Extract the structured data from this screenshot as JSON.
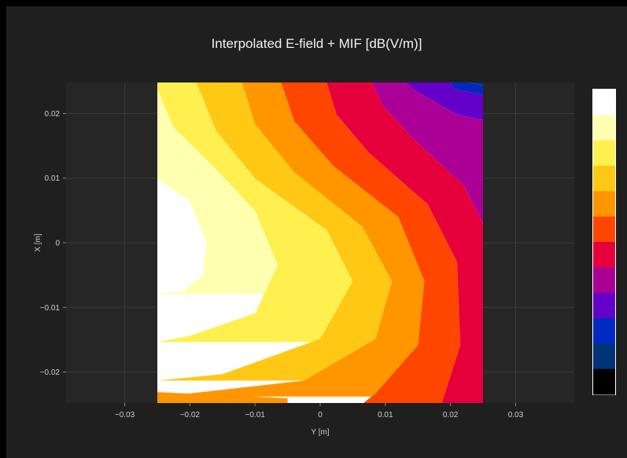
{
  "chart_data": {
    "type": "heatmap",
    "title": "Interpolated E-field + MIF [dB(V/m)]",
    "xlabel": "Y [m]",
    "ylabel": "X [m]",
    "xlim": [
      -0.039,
      0.039
    ],
    "ylim": [
      -0.0248,
      0.0248
    ],
    "data_x_range": [
      -0.025,
      0.025
    ],
    "data_y_range": [
      -0.0248,
      0.0248
    ],
    "x_ticks": [
      "−0.03",
      "−0.02",
      "−0.01",
      "0",
      "0.01",
      "0.02",
      "0.03"
    ],
    "x_tick_values": [
      -0.03,
      -0.02,
      -0.01,
      0,
      0.01,
      0.02,
      0.03
    ],
    "y_ticks": [
      "0.02",
      "0.01",
      "0",
      "−0.01",
      "−0.02"
    ],
    "y_tick_values": [
      0.02,
      0.01,
      0,
      -0.01,
      -0.02
    ],
    "grid": true,
    "colorbar": {
      "levels": 12,
      "colors": [
        "#ffffff",
        "#ffffb0",
        "#fff050",
        "#ffc814",
        "#ff9600",
        "#ff4600",
        "#e6003c",
        "#aa0096",
        "#6400c8",
        "#0028c3",
        "#003278",
        "#000000"
      ]
    }
  }
}
